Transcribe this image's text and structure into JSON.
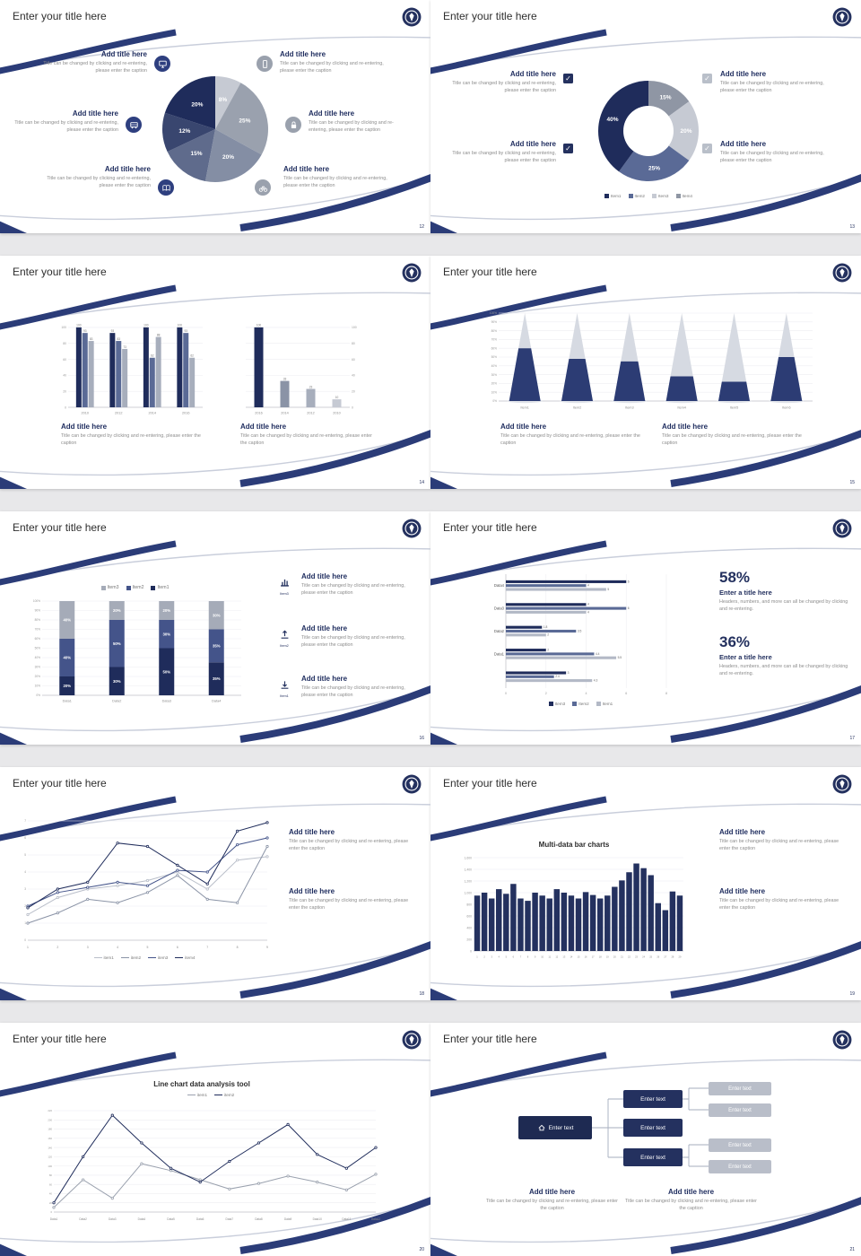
{
  "shared": {
    "slide_title": "Enter your title here",
    "add_title": "Add title here",
    "caption": "Title can be changed by clicking and re-entering, please enter the caption"
  },
  "colors": {
    "accent_navy": "#24315f",
    "accent_mid": "#5a6a96",
    "accent_gray": "#9aa1ae",
    "accent_light": "#c6cad3"
  },
  "slides": [
    {
      "page": "12",
      "icons": [
        "monitor",
        "smartphone",
        "bus",
        "lock",
        "book",
        "bicycle"
      ],
      "chart_data": {
        "type": "pie",
        "labels": [
          "8%",
          "25%",
          "20%",
          "15%",
          "12%",
          "20%"
        ],
        "values": [
          8,
          25,
          20,
          15,
          12,
          20
        ],
        "colors": [
          "#c6cad3",
          "#9aa1ae",
          "#848ea4",
          "#5f6b8c",
          "#39466f",
          "#1f2c5b"
        ]
      }
    },
    {
      "page": "13",
      "icons": [
        "checkbox",
        "checkbox",
        "checkbox",
        "checkbox"
      ],
      "chart_data": {
        "type": "donut",
        "labels": [
          "15%",
          "20%",
          "25%",
          "40%"
        ],
        "values": [
          15,
          20,
          25,
          40
        ],
        "colors": [
          "#8f96a4",
          "#c6cad3",
          "#5a6a96",
          "#1f2c5b"
        ]
      },
      "legend": {
        "marker": "square",
        "items": [
          {
            "label": "Item1",
            "color": "#1f2c5b"
          },
          {
            "label": "Item2",
            "color": "#5a6a96"
          },
          {
            "label": "Item3",
            "color": "#c6cad3"
          },
          {
            "label": "Item4",
            "color": "#8f96a4"
          }
        ]
      }
    },
    {
      "page": "14",
      "chart_a": {
        "type": "bars",
        "ymax": 110,
        "yticks": [
          0,
          20,
          40,
          60,
          80,
          100
        ],
        "show_values": true,
        "maxbar": 6,
        "colors": [
          "#1f2c5b",
          "#5a6a96",
          "#a7aebc"
        ],
        "groups": [
          {
            "label": "2010",
            "values": [
              100,
              93,
              83
            ]
          },
          {
            "label": "2012",
            "values": [
              93,
              83,
              73
            ]
          },
          {
            "label": "2014",
            "values": [
              100,
              62,
              88
            ]
          },
          {
            "label": "2016",
            "values": [
              100,
              93,
              62
            ]
          }
        ]
      },
      "chart_b": {
        "type": "bars",
        "ymax": 110,
        "yticks": [
          0,
          20,
          40,
          60,
          80,
          100
        ],
        "axis": "right",
        "show_values": true,
        "maxbar": 10,
        "per_bar": true,
        "colors": [
          "#1f2c5b",
          "#8a93a6",
          "#a7aebc",
          "#c6cad3"
        ],
        "groups": [
          {
            "label": "2016",
            "values": [
              100
            ]
          },
          {
            "label": "2014",
            "values": [
              33
            ]
          },
          {
            "label": "2012",
            "values": [
              23
            ]
          },
          {
            "label": "2010",
            "values": [
              10
            ]
          }
        ]
      }
    },
    {
      "page": "15",
      "chart_data": {
        "type": "cones",
        "categories": [
          "Item1",
          "Item2",
          "Item3",
          "Item4",
          "Item5",
          "Item6"
        ],
        "values": [
          60,
          48,
          45,
          28,
          22,
          50
        ]
      }
    },
    {
      "page": "16",
      "chart_data": {
        "type": "stacked",
        "categories": [
          "Data1",
          "Data2",
          "Data3",
          "Data4"
        ],
        "series": [
          {
            "name": "Item1",
            "color": "#1f2c5b",
            "values": [
              20,
              30,
              50,
              35
            ]
          },
          {
            "name": "Item2",
            "color": "#44548a",
            "values": [
              40,
              50,
              30,
              35
            ]
          },
          {
            "name": "Item3",
            "color": "#a5abb8",
            "values": [
              40,
              20,
              20,
              30
            ]
          }
        ]
      },
      "legend": {
        "marker": "square",
        "items": [
          {
            "label": "Item3",
            "color": "#a5abb8"
          },
          {
            "label": "Item2",
            "color": "#44548a"
          },
          {
            "label": "Item1",
            "color": "#1f2c5b"
          }
        ]
      },
      "rows": [
        {
          "icon": "bar-chart",
          "label": "Item3"
        },
        {
          "icon": "upload",
          "label": "Item2"
        },
        {
          "icon": "download",
          "label": "Item1"
        }
      ]
    },
    {
      "page": "17",
      "chart_data": {
        "type": "hbars",
        "xmax": 8,
        "xticks": [
          0,
          2,
          4,
          6,
          8
        ],
        "colors": [
          "#1f2c5b",
          "#5a6a96",
          "#b3b9c6"
        ],
        "groups": [
          {
            "label": "Data4",
            "values": [
              6,
              4,
              5
            ]
          },
          {
            "label": "Data3",
            "values": [
              4,
              6,
              4
            ]
          },
          {
            "label": "Data2",
            "values": [
              1.8,
              3.5,
              2
            ]
          },
          {
            "label": "Data1",
            "values": [
              2,
              4.4,
              5.5
            ]
          },
          {
            "label": "",
            "values": [
              3,
              2.4,
              4.3
            ]
          }
        ]
      },
      "legend": {
        "marker": "square",
        "items": [
          {
            "label": "Item3",
            "color": "#1f2c5b"
          },
          {
            "label": "Item2",
            "color": "#5a6a96"
          },
          {
            "label": "Item1",
            "color": "#b3b9c6"
          }
        ]
      },
      "right": {
        "pct1": "58%",
        "pct2": "36%",
        "subtitle": "Enter a title here",
        "caption": "Headers, numbers, and more can all be changed by clicking and re-entering."
      }
    },
    {
      "page": "18",
      "chart_data": {
        "type": "lines",
        "x": [
          "1",
          "2",
          "3",
          "4",
          "5",
          "6",
          "7",
          "8",
          "9"
        ],
        "ymax": 7,
        "yticks": [
          0,
          1,
          2,
          3,
          4,
          5,
          6,
          7
        ],
        "series": [
          {
            "name": "item1",
            "color": "#b9bec9",
            "values": [
              1.5,
              2.5,
              3,
              3.2,
              3.5,
              4,
              3,
              4.7,
              4.9
            ]
          },
          {
            "name": "item2",
            "color": "#8a93a6",
            "values": [
              1,
              1.6,
              2.4,
              2.2,
              2.8,
              3.8,
              2.4,
              2.2,
              5.5
            ]
          },
          {
            "name": "item3",
            "color": "#44548a",
            "values": [
              2,
              2.8,
              3.1,
              3.4,
              3.2,
              4.1,
              4,
              5.6,
              6
            ]
          },
          {
            "name": "item4",
            "color": "#1f2c5b",
            "values": [
              1.9,
              3,
              3.4,
              5.7,
              5.5,
              4.4,
              3.3,
              6.4,
              6.9
            ]
          }
        ]
      },
      "legend": {
        "marker": "line",
        "items": [
          {
            "label": "item1",
            "color": "#b9bec9"
          },
          {
            "label": "item2",
            "color": "#8a93a6"
          },
          {
            "label": "item3",
            "color": "#44548a"
          },
          {
            "label": "item4",
            "color": "#1f2c5b"
          }
        ]
      }
    },
    {
      "page": "19",
      "chart_title": "Multi-data bar charts",
      "chart_data": {
        "type": "bars",
        "ymax": 1600,
        "yticks": [
          0,
          200,
          400,
          600,
          800,
          1000,
          1200,
          1400,
          1600
        ],
        "ytick_labels": [
          "0",
          "200",
          "400",
          "600",
          "800",
          "1,000",
          "1,200",
          "1,400",
          "1,600"
        ],
        "x_start": 1,
        "xfont": 2.6,
        "colors": [
          "#24315f"
        ],
        "values": [
          950,
          1000,
          900,
          1060,
          980,
          1150,
          900,
          860,
          1000,
          950,
          900,
          1060,
          1000,
          950,
          900,
          1010,
          960,
          900,
          950,
          1100,
          1210,
          1350,
          1500,
          1420,
          1300,
          820,
          700,
          1020,
          950
        ]
      }
    },
    {
      "page": "20",
      "chart_title": "Line chart data analysis tool",
      "chart_data": {
        "type": "lines",
        "x": [
          "Data1",
          "Data2",
          "Data3",
          "Data4",
          "Data5",
          "Data6",
          "Data7",
          "Data8",
          "Data9",
          "Data10",
          "Data11",
          "Data12"
        ],
        "ymax": 220,
        "yticks": [
          0,
          20,
          40,
          60,
          80,
          100,
          120,
          140,
          160,
          180,
          200,
          220
        ],
        "tickfont": 2.8,
        "xfont": 3.2,
        "series": [
          {
            "name": "item1",
            "color": "#9aa1ae",
            "values": [
              10,
              70,
              30,
              105,
              90,
              70,
              50,
              62,
              78,
              65,
              48,
              82
            ]
          },
          {
            "name": "item2",
            "color": "#1f2c5b",
            "values": [
              20,
              120,
              210,
              150,
              95,
              65,
              110,
              150,
              190,
              125,
              95,
              140
            ]
          }
        ]
      },
      "legend": {
        "marker": "line",
        "items": [
          {
            "label": "item1",
            "color": "#9aa1ae"
          },
          {
            "label": "item2",
            "color": "#1f2c5b"
          }
        ]
      }
    },
    {
      "page": "21",
      "diagram": {
        "home": "Enter text",
        "nodes": [
          "Enter text",
          "Enter text",
          "Enter text"
        ],
        "leaves": [
          "Enter text",
          "Enter text",
          "Enter text",
          "Enter text"
        ]
      }
    }
  ]
}
